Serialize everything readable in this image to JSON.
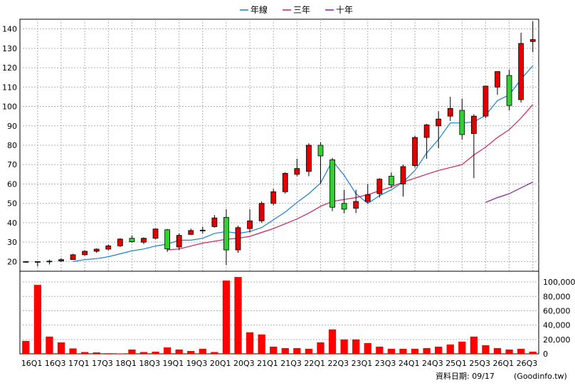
{
  "legend": [
    {
      "name": "年線",
      "color": "#1a7fd4"
    },
    {
      "name": "三年",
      "color": "#d0205a"
    },
    {
      "name": "十年",
      "color": "#8a1aa0"
    }
  ],
  "footer": {
    "date_label": "資料日期: 09/17",
    "source": "(Goodinfo.tw)"
  },
  "chart_data": [
    {
      "type": "candlestick",
      "x_labels": [
        "16Q1",
        "16Q3",
        "17Q1",
        "17Q3",
        "18Q1",
        "18Q3",
        "19Q1",
        "19Q3",
        "20Q1",
        "20Q3",
        "21Q1",
        "21Q3",
        "22Q1",
        "22Q3",
        "23Q1",
        "23Q3",
        "24Q1",
        "24Q3",
        "25Q1",
        "25Q3",
        "26Q1",
        "26Q3"
      ],
      "ylim": [
        15,
        145
      ],
      "yticks": [
        20,
        30,
        40,
        50,
        60,
        70,
        80,
        90,
        100,
        110,
        120,
        130,
        140
      ],
      "grid": true,
      "up_color": "#e00000",
      "down_color": "#30d030",
      "ohlc": [
        [
          20.0,
          20.3,
          19.4,
          19.8
        ],
        [
          20.0,
          20.3,
          17.5,
          19.9
        ],
        [
          20.0,
          21.0,
          18.5,
          20.2
        ],
        [
          20.3,
          21.8,
          19.8,
          21.0
        ],
        [
          21.0,
          24.0,
          21.0,
          23.5
        ],
        [
          23.5,
          25.8,
          23.0,
          25.3
        ],
        [
          25.3,
          26.8,
          24.5,
          26.4
        ],
        [
          26.4,
          28.8,
          25.8,
          28.1
        ],
        [
          28.1,
          32.0,
          27.5,
          31.6
        ],
        [
          32.0,
          33.5,
          29.8,
          30.2
        ],
        [
          30.0,
          32.5,
          29.0,
          32.0
        ],
        [
          32.0,
          37.0,
          31.5,
          36.8
        ],
        [
          36.4,
          36.8,
          25.0,
          26.5
        ],
        [
          27.5,
          34.5,
          26.0,
          33.5
        ],
        [
          34.0,
          37.0,
          33.8,
          36.0
        ],
        [
          36.0,
          38.0,
          34.5,
          36.2
        ],
        [
          38.0,
          44.0,
          37.5,
          42.5
        ],
        [
          42.8,
          47.0,
          18.2,
          26.0
        ],
        [
          26.0,
          38.5,
          24.5,
          37.5
        ],
        [
          37.0,
          47.0,
          35.0,
          41.0
        ],
        [
          41.0,
          51.0,
          40.0,
          50.0
        ],
        [
          50.0,
          57.5,
          49.0,
          56.0
        ],
        [
          56.0,
          66.0,
          55.0,
          65.5
        ],
        [
          65.0,
          73.0,
          64.0,
          68.0
        ],
        [
          66.5,
          81.0,
          64.0,
          80.0
        ],
        [
          80.0,
          81.5,
          60.0,
          74.5
        ],
        [
          72.5,
          73.5,
          46.0,
          48.0
        ],
        [
          50.0,
          57.0,
          45.0,
          47.0
        ],
        [
          47.5,
          57.0,
          45.0,
          51.0
        ],
        [
          51.0,
          60.0,
          50.0,
          54.5
        ],
        [
          55.0,
          63.0,
          53.0,
          62.5
        ],
        [
          64.0,
          66.0,
          58.0,
          59.5
        ],
        [
          60.0,
          70.0,
          53.5,
          69.0
        ],
        [
          69.5,
          85.0,
          68.5,
          84.0
        ],
        [
          84.0,
          91.0,
          73.0,
          90.5
        ],
        [
          90.0,
          97.5,
          78.5,
          93.5
        ],
        [
          95.0,
          105.0,
          92.5,
          99.0
        ],
        [
          98.0,
          104.0,
          83.0,
          85.5
        ],
        [
          86.0,
          96.0,
          63.0,
          95.0
        ],
        [
          95.0,
          110.5,
          94.0,
          110.5
        ],
        [
          110.0,
          118.0,
          106.0,
          118.0
        ],
        [
          116.0,
          119.0,
          98.0,
          100.5
        ],
        [
          103.5,
          138.0,
          102.0,
          132.5
        ],
        [
          133.5,
          144.0,
          128.0,
          134.5
        ]
      ],
      "series": [
        {
          "name": "年線",
          "color": "#1a7fd4",
          "values": [
            null,
            null,
            null,
            null,
            20.0,
            21.0,
            21.5,
            22.5,
            24.0,
            25.5,
            26.5,
            28.0,
            29.0,
            31.0,
            31.0,
            32.0,
            34.5,
            35.5,
            34.5,
            35.5,
            37.5,
            41.5,
            45.5,
            50.5,
            55.0,
            60.5,
            72.0,
            64.5,
            55.0,
            50.0,
            54.0,
            57.0,
            61.0,
            67.0,
            76.0,
            83.0,
            91.5,
            91.5,
            92.0,
            95.5,
            103.0,
            106.0,
            114.0,
            121.0
          ]
        },
        {
          "name": "三年",
          "color": "#d0205a",
          "values": [
            null,
            null,
            null,
            null,
            null,
            null,
            null,
            null,
            null,
            null,
            null,
            null,
            26.0,
            26.5,
            28.0,
            29.5,
            30.5,
            31.5,
            32.0,
            33.0,
            35.0,
            37.0,
            39.5,
            42.0,
            45.0,
            48.5,
            51.0,
            52.0,
            53.0,
            54.5,
            56.5,
            58.5,
            61.0,
            63.0,
            65.0,
            67.0,
            68.5,
            70.0,
            75.0,
            79.0,
            84.0,
            88.0,
            94.0,
            101.0
          ]
        },
        {
          "name": "十年",
          "color": "#8a1aa0",
          "values": [
            null,
            null,
            null,
            null,
            null,
            null,
            null,
            null,
            null,
            null,
            null,
            null,
            null,
            null,
            null,
            null,
            null,
            null,
            null,
            null,
            null,
            null,
            null,
            null,
            null,
            null,
            null,
            null,
            null,
            null,
            null,
            null,
            null,
            null,
            null,
            null,
            null,
            null,
            null,
            50.5,
            53.0,
            55.0,
            58.0,
            61.0
          ]
        }
      ]
    },
    {
      "type": "bar",
      "ylim": [
        0,
        115000
      ],
      "yticks": [
        "0",
        "20,000",
        "40,000",
        "60,000",
        "80,000",
        "100,000"
      ],
      "ytick_values": [
        0,
        20000,
        40000,
        60000,
        80000,
        100000
      ],
      "color": "#ff0000",
      "values": [
        18000,
        96000,
        24000,
        16000,
        7500,
        2500,
        2000,
        800,
        500,
        6000,
        2500,
        3000,
        9000,
        6000,
        4000,
        7000,
        2500,
        102000,
        107000,
        30000,
        27000,
        10000,
        8000,
        8000,
        7000,
        16000,
        34000,
        20000,
        20000,
        15000,
        10000,
        7000,
        7000,
        7000,
        8000,
        10000,
        13000,
        17000,
        24000,
        12000,
        8000,
        6000,
        7000,
        3000
      ]
    }
  ]
}
